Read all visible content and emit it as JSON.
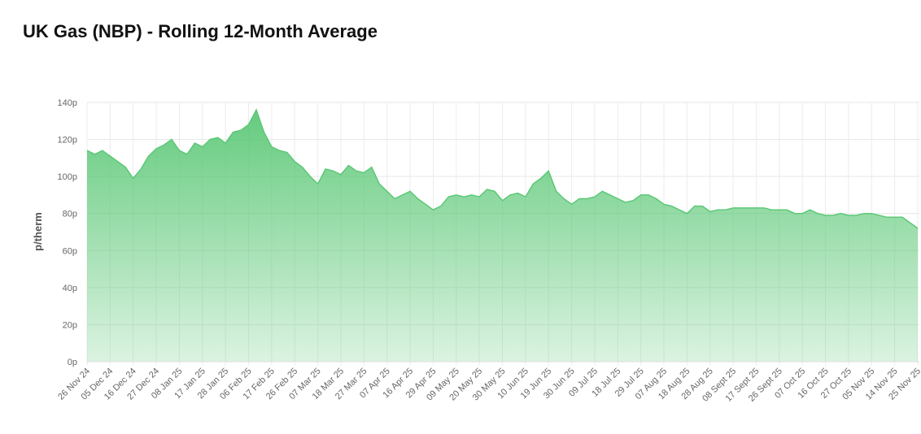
{
  "chart_data": {
    "type": "area",
    "title": "UK Gas (NBP) - Rolling 12-Month Average",
    "y_label": "p/therm",
    "color": "#5cc877",
    "grid": true,
    "ylim": [
      0,
      140
    ],
    "yticks": [
      {
        "value": 0,
        "label": "0p"
      },
      {
        "value": 20,
        "label": "20p"
      },
      {
        "value": 40,
        "label": "40p"
      },
      {
        "value": 60,
        "label": "60p"
      },
      {
        "value": 80,
        "label": "80p"
      },
      {
        "value": 100,
        "label": "100p"
      },
      {
        "value": 120,
        "label": "120p"
      },
      {
        "value": 140,
        "label": "140p"
      }
    ],
    "categories": [
      "26 Nov 24",
      null,
      null,
      "05 Dec 24",
      null,
      null,
      "16 Dec 24",
      null,
      null,
      "27 Dec 24",
      null,
      null,
      "08 Jan 25",
      null,
      null,
      "17 Jan 25",
      null,
      null,
      "28 Jan 25",
      null,
      null,
      "06 Feb 25",
      null,
      null,
      "17 Feb 25",
      null,
      null,
      "26 Feb 25",
      null,
      null,
      "07 Mar 25",
      null,
      null,
      "18 Mar 25",
      null,
      null,
      "27 Mar 25",
      null,
      null,
      "07 Apr 25",
      null,
      null,
      "16 Apr 25",
      null,
      null,
      "29 Apr 25",
      null,
      null,
      "09 May 25",
      null,
      null,
      "20 May 25",
      null,
      null,
      "30 May 25",
      null,
      null,
      "10 Jun 25",
      null,
      null,
      "19 Jun 25",
      null,
      null,
      "30 Jun 25",
      null,
      null,
      "09 Jul 25",
      null,
      null,
      "18 Jul 25",
      null,
      null,
      "29 Jul 25",
      null,
      null,
      "07 Aug 25",
      null,
      null,
      "18 Aug 25",
      null,
      null,
      "28 Aug 25",
      null,
      null,
      "08 Sept 25",
      null,
      null,
      "17 Sept 25",
      null,
      null,
      "26 Sept 25",
      null,
      null,
      "07 Oct 25",
      null,
      null,
      "16 Oct 25",
      null,
      null,
      "27 Oct 25",
      null,
      null,
      "05 Nov 25",
      null,
      null,
      "14 Nov 25",
      null,
      null,
      "25 Nov 25"
    ],
    "values": [
      114,
      112,
      114,
      111,
      108,
      105,
      99,
      104,
      111,
      115,
      117,
      120,
      114,
      112,
      118,
      116,
      120,
      121,
      118,
      124,
      125,
      128,
      136,
      124,
      116,
      114,
      113,
      108,
      105,
      100,
      96,
      104,
      103,
      101,
      106,
      103,
      102,
      105,
      96,
      92,
      88,
      90,
      92,
      88,
      85,
      82,
      84,
      89,
      90,
      89,
      90,
      89,
      93,
      92,
      87,
      90,
      91,
      89,
      96,
      99,
      103,
      92,
      88,
      85,
      88,
      88,
      89,
      92,
      90,
      88,
      86,
      87,
      90,
      90,
      88,
      85,
      84,
      82,
      80,
      84,
      84,
      81,
      82,
      82,
      83,
      83,
      83,
      83,
      83,
      82,
      82,
      82,
      80,
      80,
      82,
      80,
      79,
      79,
      80,
      79,
      79,
      80,
      80,
      79,
      78,
      78,
      78,
      75,
      72
    ]
  }
}
